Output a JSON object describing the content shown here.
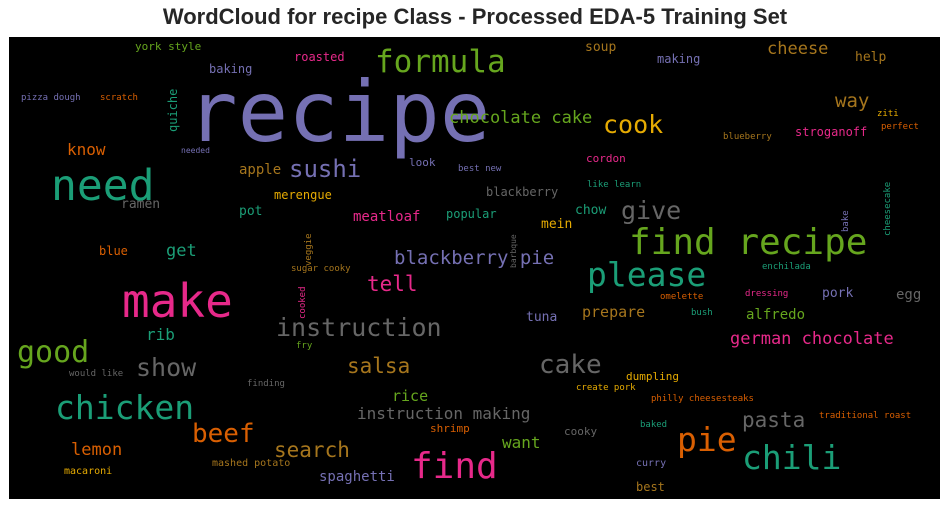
{
  "title": "WordCloud for recipe Class - Processed EDA-5 Training Set",
  "chart_data": {
    "type": "wordcloud",
    "background": "#000000",
    "words": [
      {
        "text": "recipe",
        "color": "#7570b3"
      },
      {
        "text": "make",
        "color": "#e7298a"
      },
      {
        "text": "need",
        "color": "#1b9e77"
      },
      {
        "text": "find recipe",
        "color": "#66a61e"
      },
      {
        "text": "find",
        "color": "#e7298a"
      },
      {
        "text": "chicken",
        "color": "#1b9e77"
      },
      {
        "text": "please",
        "color": "#1b9e77"
      },
      {
        "text": "chili",
        "color": "#1b9e77"
      },
      {
        "text": "pie",
        "color": "#d95f02"
      },
      {
        "text": "formula",
        "color": "#66a61e"
      },
      {
        "text": "good",
        "color": "#66a61e"
      },
      {
        "text": "instruction",
        "color": "#666666"
      },
      {
        "text": "beef",
        "color": "#d95f02"
      },
      {
        "text": "cake",
        "color": "#666666"
      },
      {
        "text": "cook",
        "color": "#e6ab02"
      },
      {
        "text": "give",
        "color": "#666666"
      },
      {
        "text": "show",
        "color": "#666666"
      },
      {
        "text": "sushi",
        "color": "#7570b3"
      },
      {
        "text": "pasta",
        "color": "#666666"
      },
      {
        "text": "blackberry pie",
        "color": "#7570b3"
      },
      {
        "text": "salsa",
        "color": "#a6761d"
      },
      {
        "text": "search",
        "color": "#a6761d"
      },
      {
        "text": "tell",
        "color": "#e7298a"
      },
      {
        "text": "german chocolate",
        "color": "#e7298a"
      },
      {
        "text": "chocolate cake",
        "color": "#66a61e"
      },
      {
        "text": "way",
        "color": "#a6761d"
      },
      {
        "text": "cheese",
        "color": "#a6761d"
      },
      {
        "text": "instruction making",
        "color": "#666666"
      },
      {
        "text": "lemon",
        "color": "#d95f02"
      },
      {
        "text": "want",
        "color": "#66a61e"
      },
      {
        "text": "get",
        "color": "#1b9e77"
      },
      {
        "text": "know",
        "color": "#d95f02"
      },
      {
        "text": "rib",
        "color": "#1b9e77"
      },
      {
        "text": "rice",
        "color": "#66a61e"
      },
      {
        "text": "prepare",
        "color": "#a6761d"
      },
      {
        "text": "alfredo",
        "color": "#66a61e"
      },
      {
        "text": "meatloaf",
        "color": "#e7298a"
      },
      {
        "text": "spaghetti",
        "color": "#7570b3"
      },
      {
        "text": "apple",
        "color": "#a6761d"
      },
      {
        "text": "pot",
        "color": "#1b9e77"
      },
      {
        "text": "mein",
        "color": "#e6ab02"
      },
      {
        "text": "chow",
        "color": "#1b9e77"
      },
      {
        "text": "tuna",
        "color": "#7570b3"
      },
      {
        "text": "pork",
        "color": "#7570b3"
      },
      {
        "text": "egg",
        "color": "#666666"
      },
      {
        "text": "help",
        "color": "#a6761d"
      },
      {
        "text": "soup",
        "color": "#a6761d"
      },
      {
        "text": "making",
        "color": "#7570b3"
      },
      {
        "text": "popular",
        "color": "#1b9e77"
      },
      {
        "text": "blackberry",
        "color": "#666666"
      },
      {
        "text": "stroganoff",
        "color": "#e7298a"
      },
      {
        "text": "quiche",
        "color": "#1b9e77"
      },
      {
        "text": "baking",
        "color": "#7570b3"
      },
      {
        "text": "york style",
        "color": "#66a61e"
      },
      {
        "text": "roasted",
        "color": "#e7298a"
      },
      {
        "text": "merengue",
        "color": "#e6ab02"
      },
      {
        "text": "ramen",
        "color": "#666666"
      },
      {
        "text": "blue",
        "color": "#d95f02"
      },
      {
        "text": "look",
        "color": "#7570b3"
      },
      {
        "text": "cordon",
        "color": "#e7298a"
      },
      {
        "text": "best",
        "color": "#a6761d"
      },
      {
        "text": "dumpling",
        "color": "#e6ab02"
      },
      {
        "text": "shrimp",
        "color": "#d95f02"
      },
      {
        "text": "cooky",
        "color": "#666666"
      },
      {
        "text": "curry",
        "color": "#7570b3"
      },
      {
        "text": "mashed potato",
        "color": "#a6761d"
      },
      {
        "text": "macaroni",
        "color": "#e6ab02"
      },
      {
        "text": "would like",
        "color": "#666666"
      },
      {
        "text": "finding",
        "color": "#666666"
      },
      {
        "text": "fry",
        "color": "#66a61e"
      },
      {
        "text": "cooked",
        "color": "#e7298a"
      },
      {
        "text": "veggie",
        "color": "#a6761d"
      },
      {
        "text": "sugar cooky",
        "color": "#a6761d"
      },
      {
        "text": "barbque",
        "color": "#666666"
      },
      {
        "text": "best new",
        "color": "#7570b3"
      },
      {
        "text": "like learn",
        "color": "#1b9e77"
      },
      {
        "text": "needed",
        "color": "#7570b3"
      },
      {
        "text": "blueberry",
        "color": "#a6761d"
      },
      {
        "text": "perfect",
        "color": "#d95f02"
      },
      {
        "text": "ziti",
        "color": "#e6ab02"
      },
      {
        "text": "bake",
        "color": "#7570b3"
      },
      {
        "text": "cheesecake",
        "color": "#1b9e77"
      },
      {
        "text": "enchilada",
        "color": "#1b9e77"
      },
      {
        "text": "omelette",
        "color": "#d95f02"
      },
      {
        "text": "dressing",
        "color": "#e7298a"
      },
      {
        "text": "bush",
        "color": "#1b9e77"
      },
      {
        "text": "create pork",
        "color": "#e6ab02"
      },
      {
        "text": "philly cheesesteaks",
        "color": "#d95f02"
      },
      {
        "text": "traditional roast",
        "color": "#d95f02"
      },
      {
        "text": "baked",
        "color": "#1b9e77"
      },
      {
        "text": "pizza dough",
        "color": "#7570b3"
      },
      {
        "text": "scratch",
        "color": "#d95f02"
      }
    ]
  }
}
